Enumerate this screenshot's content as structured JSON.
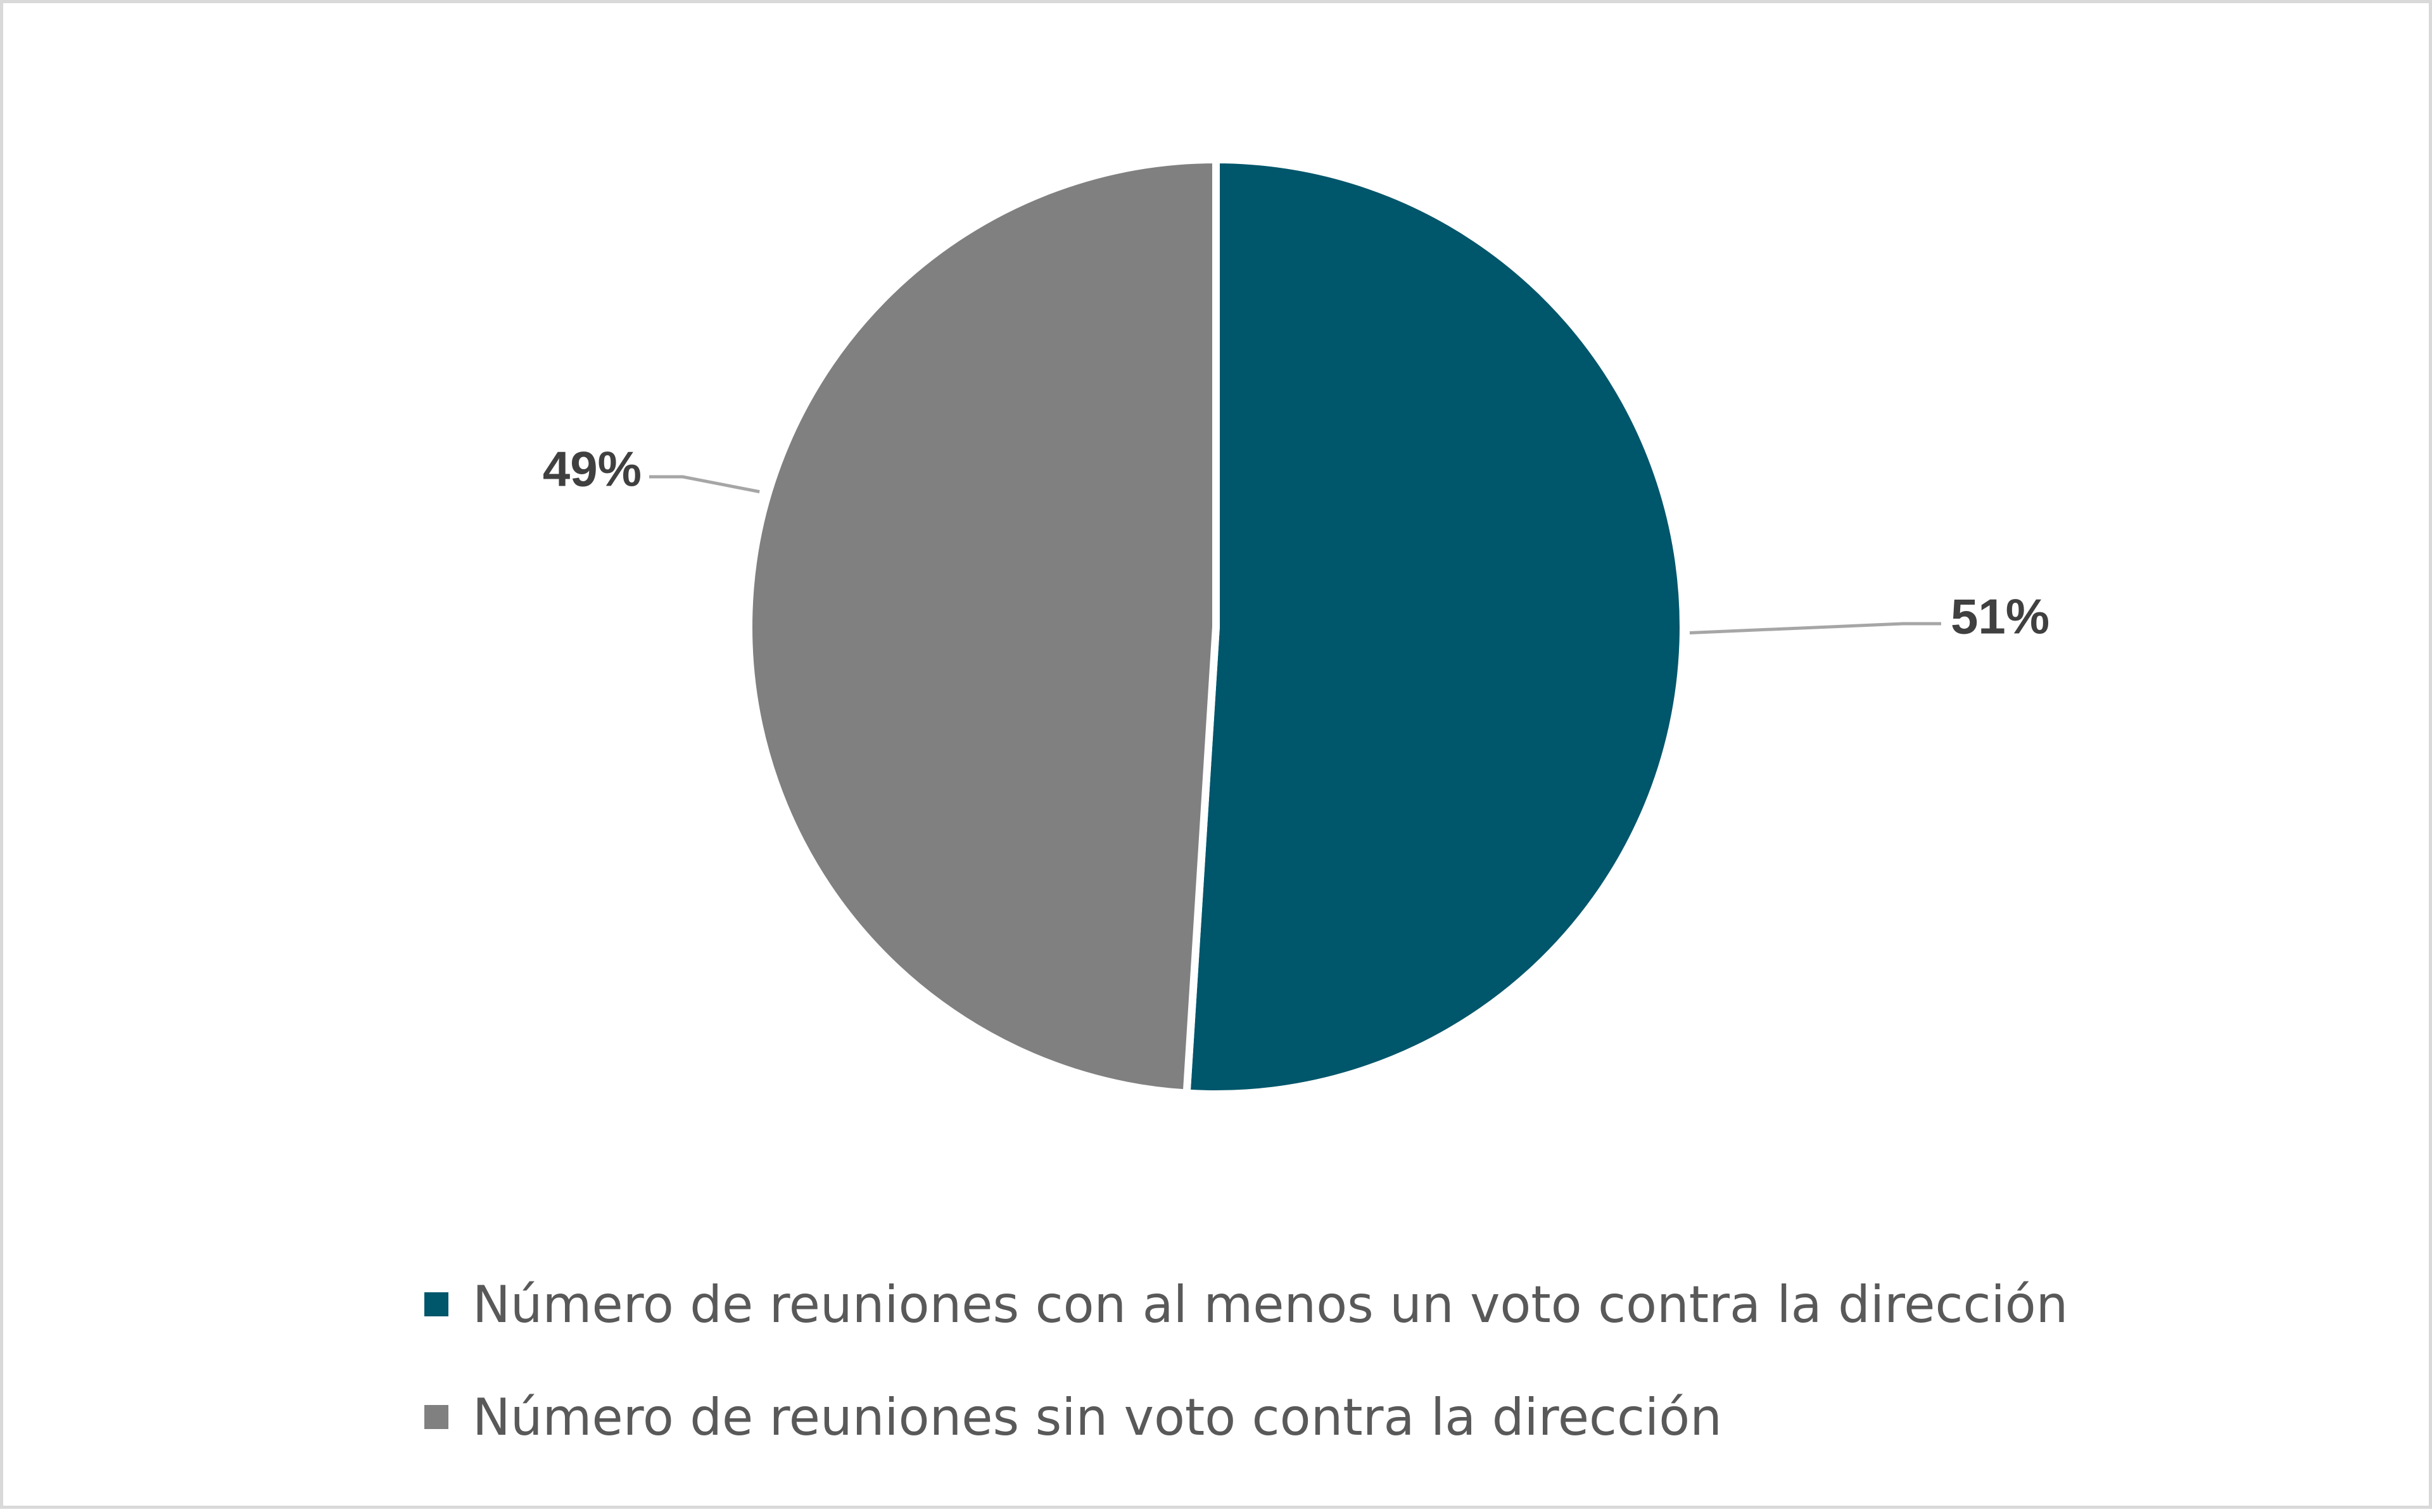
{
  "chart_data": {
    "type": "pie",
    "title": "",
    "series": [
      {
        "name": "Número de reuniones con al menos un voto contra la dirección",
        "value": 51,
        "label": "51%",
        "color": "#00566b"
      },
      {
        "name": "Número de reuniones sin voto contra la dirección",
        "value": 49,
        "label": "49%",
        "color": "#808080"
      }
    ],
    "legend_position": "bottom",
    "data_labels": "outside-with-leader-lines"
  }
}
